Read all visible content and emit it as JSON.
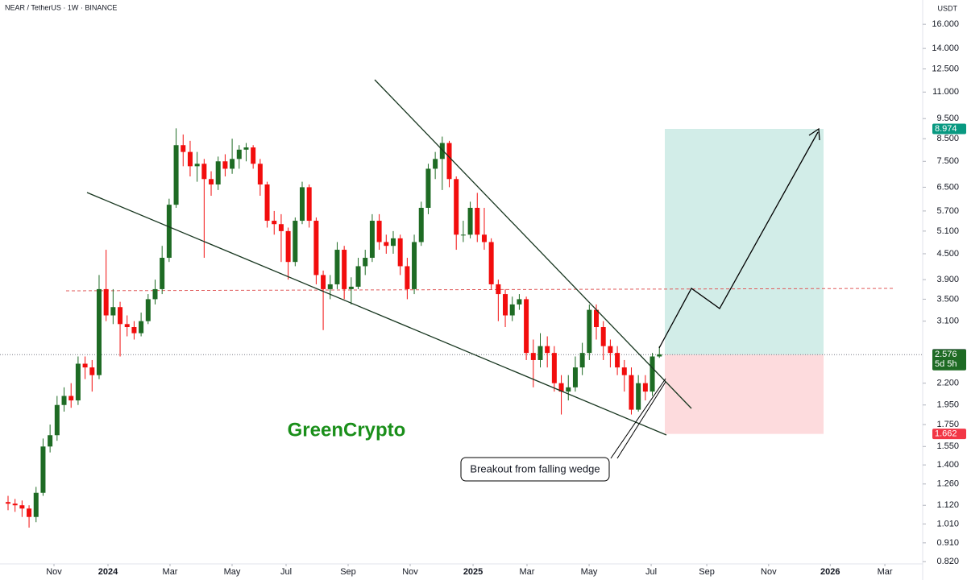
{
  "header": {
    "symbol": "NEAR / TetherUS · 1W · BINANCE",
    "currency": "USDT"
  },
  "watermark": "GreenCrypto",
  "annotation": "Breakout from falling wedge",
  "chart_data": {
    "type": "candlestick",
    "log_scale": true,
    "up_color": "#1e6b24",
    "down_color": "#f20d0d",
    "ylim": [
      0.81,
      18.3
    ],
    "yticks": [
      {
        "value": 16,
        "label": "16.000"
      },
      {
        "value": 14,
        "label": "14.000"
      },
      {
        "value": 12.5,
        "label": "12.500"
      },
      {
        "value": 11,
        "label": "11.000"
      },
      {
        "value": 9.5,
        "label": "9.500"
      },
      {
        "value": 8.5,
        "label": "8.500"
      },
      {
        "value": 7.5,
        "label": "7.500"
      },
      {
        "value": 6.5,
        "label": "6.500"
      },
      {
        "value": 5.7,
        "label": "5.700"
      },
      {
        "value": 5.1,
        "label": "5.100"
      },
      {
        "value": 4.5,
        "label": "4.500"
      },
      {
        "value": 3.9,
        "label": "3.900"
      },
      {
        "value": 3.5,
        "label": "3.500"
      },
      {
        "value": 3.1,
        "label": "3.100"
      },
      {
        "value": 2.2,
        "label": "2.200"
      },
      {
        "value": 1.95,
        "label": "1.950"
      },
      {
        "value": 1.75,
        "label": "1.750"
      },
      {
        "value": 1.55,
        "label": "1.550"
      },
      {
        "value": 1.4,
        "label": "1.400"
      },
      {
        "value": 1.26,
        "label": "1.260"
      },
      {
        "value": 1.12,
        "label": "1.120"
      },
      {
        "value": 1.01,
        "label": "1.010"
      },
      {
        "value": 0.91,
        "label": "0.910"
      },
      {
        "value": 0.82,
        "label": "0.820"
      }
    ],
    "xlim": [
      -1.15,
      130.6
    ],
    "xticks": [
      {
        "value": 6.56,
        "label": "Nov"
      },
      {
        "value": 14.27,
        "label": "2024"
      },
      {
        "value": 23.13,
        "label": "Mar"
      },
      {
        "value": 31.99,
        "label": "May"
      },
      {
        "value": 39.7,
        "label": "Jul"
      },
      {
        "value": 48.56,
        "label": "Sep"
      },
      {
        "value": 57.42,
        "label": "Nov"
      },
      {
        "value": 66.4,
        "label": "2025"
      },
      {
        "value": 74.1,
        "label": "Mar"
      },
      {
        "value": 82.97,
        "label": "May"
      },
      {
        "value": 91.83,
        "label": "Jul"
      },
      {
        "value": 99.77,
        "label": "Sep"
      },
      {
        "value": 108.6,
        "label": "Nov"
      },
      {
        "value": 117.4,
        "label": "2026"
      },
      {
        "value": 125.2,
        "label": "Mar"
      }
    ],
    "open": [
      1.14,
      1.13,
      1.12,
      1.1,
      1.05,
      1.2,
      1.55,
      1.65,
      1.95,
      2.05,
      2.0,
      2.45,
      2.4,
      2.3,
      3.7,
      3.2,
      3.35,
      3.05,
      3.0,
      2.9,
      3.1,
      3.5,
      3.7,
      4.4,
      5.9,
      8.2,
      7.9,
      7.3,
      7.4,
      6.8,
      6.6,
      7.5,
      7.2,
      7.6,
      8.0,
      8.1,
      7.4,
      6.6,
      5.4,
      5.3,
      5.1,
      4.3,
      5.4,
      6.5,
      5.4,
      4.0,
      3.7,
      3.8,
      4.6,
      3.7,
      3.75,
      4.2,
      4.4,
      5.4,
      4.8,
      4.7,
      4.9,
      4.2,
      3.7,
      4.8,
      5.8,
      7.2,
      7.6,
      8.3,
      6.8,
      5.0,
      5.0,
      5.8,
      5.0,
      4.8,
      3.8,
      3.6,
      3.2,
      3.4,
      3.5,
      2.6,
      2.5,
      2.7,
      2.6,
      2.2,
      2.1,
      2.15,
      2.4,
      2.6,
      3.3,
      3.0,
      2.7,
      2.6,
      2.4,
      2.3,
      1.9,
      2.2,
      2.1,
      2.55
    ],
    "high": [
      1.18,
      1.16,
      1.15,
      1.12,
      1.24,
      1.62,
      1.75,
      2.05,
      2.15,
      2.2,
      2.55,
      2.55,
      2.5,
      4.0,
      4.6,
      3.7,
      3.45,
      3.2,
      3.1,
      3.25,
      3.6,
      3.9,
      4.7,
      6.1,
      9.0,
      8.7,
      8.4,
      7.9,
      7.6,
      7.1,
      7.7,
      7.8,
      8.5,
      8.2,
      8.3,
      8.2,
      7.6,
      6.7,
      5.7,
      5.6,
      5.2,
      5.5,
      6.7,
      6.6,
      5.5,
      4.1,
      4.0,
      4.8,
      4.7,
      3.95,
      4.4,
      4.6,
      5.6,
      5.6,
      5.0,
      5.1,
      5.0,
      4.4,
      5.0,
      6.0,
      7.4,
      7.9,
      8.6,
      8.4,
      6.9,
      5.4,
      6.0,
      6.3,
      5.8,
      4.9,
      3.9,
      3.7,
      3.55,
      3.6,
      3.55,
      2.8,
      2.9,
      2.85,
      2.7,
      2.3,
      2.3,
      2.55,
      2.75,
      3.4,
      3.4,
      3.1,
      2.8,
      2.7,
      2.5,
      2.4,
      2.3,
      2.3,
      2.6,
      2.7
    ],
    "low": [
      1.09,
      1.08,
      1.05,
      0.99,
      1.02,
      1.18,
      1.5,
      1.6,
      1.88,
      1.92,
      1.95,
      2.25,
      2.1,
      2.25,
      3.1,
      3.05,
      2.55,
      2.85,
      2.8,
      2.85,
      3.05,
      3.4,
      3.6,
      4.3,
      5.8,
      7.3,
      6.9,
      6.7,
      4.4,
      6.2,
      6.4,
      6.9,
      7.0,
      7.2,
      7.5,
      7.2,
      6.2,
      5.2,
      5.0,
      4.3,
      3.9,
      4.2,
      5.3,
      5.2,
      3.8,
      2.95,
      3.5,
      3.7,
      3.5,
      3.4,
      3.7,
      4.0,
      4.3,
      4.6,
      4.5,
      4.5,
      4.0,
      3.5,
      3.6,
      4.7,
      5.6,
      6.8,
      6.4,
      6.5,
      4.6,
      4.8,
      4.9,
      4.8,
      4.6,
      3.7,
      3.1,
      3.0,
      3.1,
      3.3,
      2.5,
      2.15,
      2.4,
      2.4,
      2.1,
      1.85,
      2.0,
      2.1,
      2.3,
      2.5,
      2.8,
      2.5,
      2.4,
      2.3,
      2.1,
      1.85,
      1.88,
      2.0,
      2.05,
      2.53
    ],
    "close": [
      1.13,
      1.12,
      1.1,
      1.05,
      1.2,
      1.55,
      1.65,
      1.95,
      2.05,
      2.0,
      2.45,
      2.4,
      2.3,
      3.7,
      3.2,
      3.35,
      3.05,
      3.0,
      2.9,
      3.1,
      3.5,
      3.7,
      4.4,
      5.9,
      8.2,
      7.9,
      7.3,
      7.4,
      6.8,
      6.6,
      7.5,
      7.2,
      7.6,
      8.0,
      8.1,
      7.4,
      6.6,
      5.4,
      5.3,
      5.1,
      4.3,
      5.4,
      6.5,
      5.4,
      4.0,
      3.7,
      3.8,
      4.6,
      3.7,
      3.75,
      4.2,
      4.4,
      5.4,
      4.8,
      4.7,
      4.9,
      4.2,
      3.7,
      4.8,
      5.8,
      7.2,
      7.6,
      8.3,
      6.8,
      5.0,
      5.0,
      5.8,
      5.0,
      4.8,
      3.8,
      3.6,
      3.2,
      3.4,
      3.5,
      2.6,
      2.5,
      2.7,
      2.6,
      2.2,
      2.1,
      2.15,
      2.4,
      2.6,
      3.3,
      3.0,
      2.7,
      2.6,
      2.4,
      2.3,
      1.9,
      2.2,
      2.1,
      2.55,
      2.58
    ],
    "position": {
      "target": 8.974,
      "entry": 2.576,
      "stop": 1.662
    },
    "crosshair_price": 2.585,
    "countdown": "5d 5h"
  }
}
